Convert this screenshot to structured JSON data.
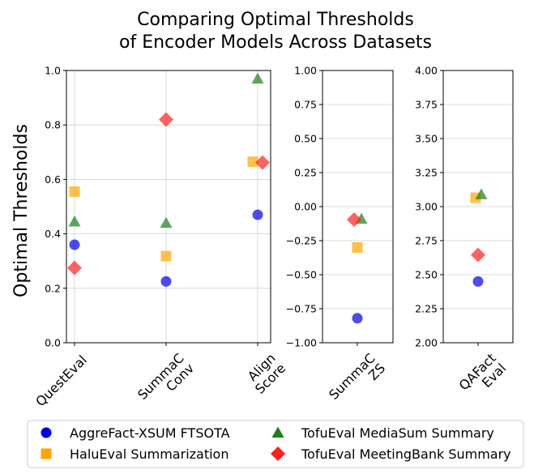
{
  "chart_data": {
    "type": "scatter",
    "title_lines": [
      "Comparing Optimal Thresholds",
      "of Encoder Models Across Datasets"
    ],
    "ylabel": "Optimal Thresholds",
    "legend": {
      "placement": "bottom",
      "entries": [
        {
          "name": "AggreFact-XSUM FTSOTA",
          "marker": "circle",
          "color": "#0000ee"
        },
        {
          "name": "HaluEval Summarization",
          "marker": "square",
          "color": "#ffa500"
        },
        {
          "name": "TofuEval MediaSum Summary",
          "marker": "triangle",
          "color": "#1a801a"
        },
        {
          "name": "TofuEval MeetingBank Summary",
          "marker": "diamond",
          "color": "#ff2020"
        }
      ]
    },
    "panels": [
      {
        "id": "panel1",
        "ylim": [
          0.0,
          1.0
        ],
        "yticks": [
          "0.0",
          "0.2",
          "0.4",
          "0.6",
          "0.8",
          "1.0"
        ],
        "ytick_values": [
          0.0,
          0.2,
          0.4,
          0.6,
          0.8,
          1.0
        ],
        "grid": true,
        "categories": [
          {
            "label_lines": [
              "QuestEval"
            ],
            "values": [
              0.36,
              0.555,
              0.445,
              0.275
            ]
          },
          {
            "label_lines": [
              "SummaC",
              "Conv"
            ],
            "values": [
              0.225,
              0.318,
              0.44,
              0.82
            ]
          },
          {
            "label_lines": [
              "Align",
              "Score"
            ],
            "values": [
              0.47,
              0.665,
              0.97,
              0.662
            ]
          }
        ]
      },
      {
        "id": "panel2",
        "ylim": [
          -1.0,
          1.0
        ],
        "yticks": [
          "−1.00",
          "−0.75",
          "−0.50",
          "−0.25",
          "0.00",
          "0.25",
          "0.50",
          "0.75",
          "1.00"
        ],
        "ytick_values": [
          -1.0,
          -0.75,
          -0.5,
          -0.25,
          0.0,
          0.25,
          0.5,
          0.75,
          1.0
        ],
        "grid": true,
        "categories": [
          {
            "label_lines": [
              "SummaC",
              "ZS"
            ],
            "values": [
              -0.82,
              -0.3,
              -0.09,
              -0.095
            ]
          }
        ]
      },
      {
        "id": "panel3",
        "ylim": [
          2.0,
          4.0
        ],
        "yticks": [
          "2.00",
          "2.25",
          "2.50",
          "2.75",
          "3.00",
          "3.25",
          "3.50",
          "3.75",
          "4.00"
        ],
        "ytick_values": [
          2.0,
          2.25,
          2.5,
          2.75,
          3.0,
          3.25,
          3.5,
          3.75,
          4.0
        ],
        "grid": true,
        "categories": [
          {
            "label_lines": [
              "QAFact",
              "Eval"
            ],
            "values": [
              2.45,
              3.065,
              3.09,
              2.645
            ]
          }
        ]
      }
    ]
  }
}
